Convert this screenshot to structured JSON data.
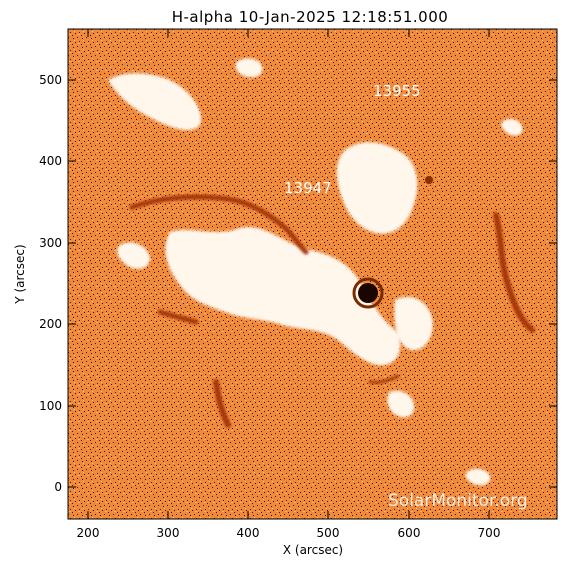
{
  "title": "H-alpha 10-Jan-2025 12:18:51.000",
  "x_axis": {
    "label": "X (arcsec)",
    "ticks": [
      "200",
      "300",
      "400",
      "500",
      "600",
      "700"
    ]
  },
  "y_axis": {
    "label": "Y (arcsec)",
    "ticks": [
      "0",
      "100",
      "200",
      "300",
      "400",
      "500"
    ]
  },
  "regions": [
    {
      "id": "13955",
      "label": "13955"
    },
    {
      "id": "13947",
      "label": "13947"
    }
  ],
  "watermark": "SolarMonitor.org",
  "colors": {
    "background": "#f08a3a",
    "plage": "#fff6ec",
    "filament": "#a83808",
    "sunspot": "#1a0500",
    "noise": "#2a1000"
  }
}
